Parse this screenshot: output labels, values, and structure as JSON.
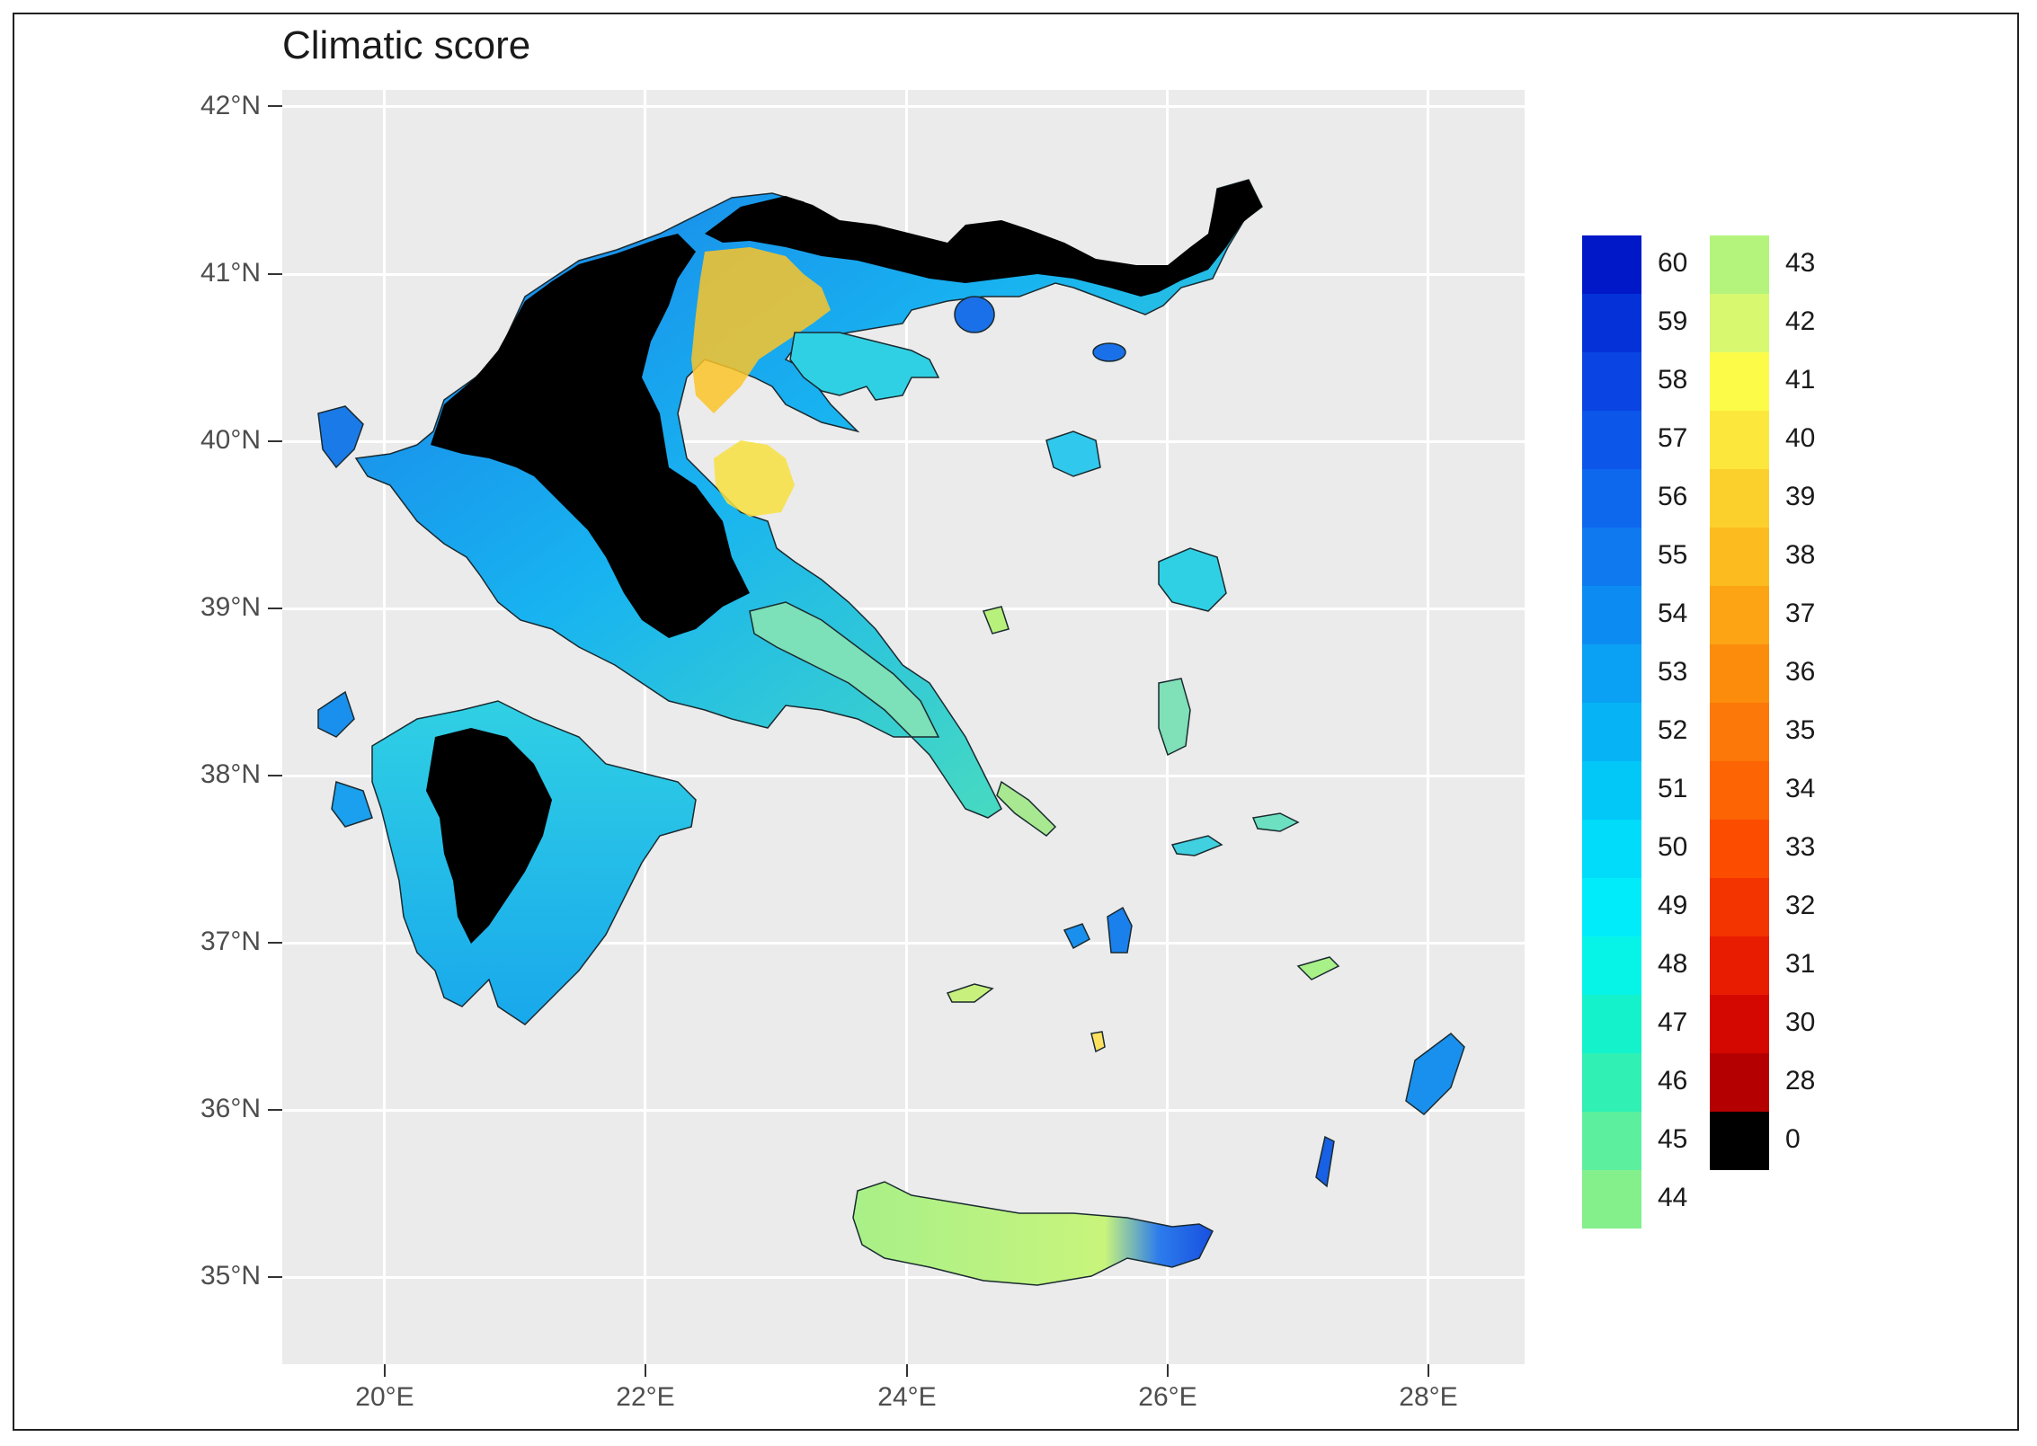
{
  "title": "Climatic score",
  "axes": {
    "y_ticks": [
      "42°N",
      "41°N",
      "40°N",
      "39°N",
      "38°N",
      "37°N",
      "36°N",
      "35°N"
    ],
    "x_ticks": [
      "20°E",
      "22°E",
      "24°E",
      "26°E",
      "28°E"
    ],
    "lon_range": [
      19.2,
      28.7
    ],
    "lat_range": [
      34.45,
      42.1
    ]
  },
  "legend": {
    "left_column": [
      {
        "label": "60",
        "color": "#0018c8"
      },
      {
        "label": "59",
        "color": "#0532d8"
      },
      {
        "label": "58",
        "color": "#0a44e2"
      },
      {
        "label": "57",
        "color": "#0c56ea"
      },
      {
        "label": "56",
        "color": "#0e68ee"
      },
      {
        "label": "55",
        "color": "#0f7af0"
      },
      {
        "label": "54",
        "color": "#0c8cf2"
      },
      {
        "label": "53",
        "color": "#0aa0f4"
      },
      {
        "label": "52",
        "color": "#06b4f6"
      },
      {
        "label": "51",
        "color": "#02c8f8"
      },
      {
        "label": "50",
        "color": "#00dcfa"
      },
      {
        "label": "49",
        "color": "#00ecfa"
      },
      {
        "label": "48",
        "color": "#06f4e8"
      },
      {
        "label": "47",
        "color": "#14f2cc"
      },
      {
        "label": "46",
        "color": "#30f0b4"
      },
      {
        "label": "45",
        "color": "#5cf09e"
      },
      {
        "label": "44",
        "color": "#84f08c"
      }
    ],
    "right_column": [
      {
        "label": "43",
        "color": "#b4f47c"
      },
      {
        "label": "42",
        "color": "#d8f870"
      },
      {
        "label": "41",
        "color": "#fcfc48"
      },
      {
        "label": "40",
        "color": "#fce83c"
      },
      {
        "label": "39",
        "color": "#fcd02c"
      },
      {
        "label": "38",
        "color": "#fcbc20"
      },
      {
        "label": "37",
        "color": "#fca414"
      },
      {
        "label": "36",
        "color": "#fc8c0c"
      },
      {
        "label": "35",
        "color": "#fc7808"
      },
      {
        "label": "34",
        "color": "#fc6404"
      },
      {
        "label": "33",
        "color": "#fc4c00"
      },
      {
        "label": "32",
        "color": "#f43400"
      },
      {
        "label": "31",
        "color": "#e81c00"
      },
      {
        "label": "30",
        "color": "#d40800"
      },
      {
        "label": "28",
        "color": "#b40000"
      },
      {
        "label": "0",
        "color": "#000000"
      }
    ]
  },
  "colors": {
    "panel_bg": "#ebebeb",
    "mountain": "#000000",
    "coastal_low": "#2ec8e0",
    "coastal_high": "#b4f47c",
    "warm": "#fcbc20"
  }
}
